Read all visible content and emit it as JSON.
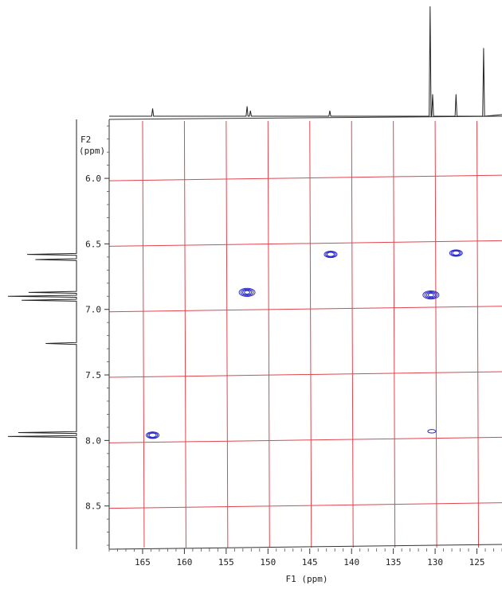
{
  "chart_data": {
    "type": "scatter",
    "title": "",
    "xlabel": "F1 (ppm)",
    "ylabel_line1": "F2",
    "ylabel_line2": "(ppm)",
    "x_range": [
      169.0,
      122.0
    ],
    "y_range": [
      5.55,
      8.83
    ],
    "x_ticks": [
      165,
      160,
      155,
      150,
      145,
      140,
      135,
      130,
      125
    ],
    "x_tick_labels": [
      "165",
      "160",
      "155",
      "150",
      "145",
      "140",
      "135",
      "130",
      "125"
    ],
    "y_ticks": [
      6.0,
      6.5,
      7.0,
      7.5,
      8.0,
      8.5
    ],
    "y_tick_labels": [
      "6.0",
      "6.5",
      "7.0",
      "7.5",
      "8.0",
      "8.5"
    ],
    "grid": true,
    "points": [
      {
        "x": 163.8,
        "y": 7.96,
        "size": "medium"
      },
      {
        "x": 152.5,
        "y": 6.87,
        "size": "large"
      },
      {
        "x": 142.5,
        "y": 6.58,
        "size": "medium"
      },
      {
        "x": 130.5,
        "y": 6.89,
        "size": "large"
      },
      {
        "x": 127.5,
        "y": 6.57,
        "size": "medium"
      },
      {
        "x": 130.4,
        "y": 7.93,
        "size": "small"
      }
    ],
    "f1_projection_peaks": [
      {
        "ppm": 163.8,
        "height": 0.07
      },
      {
        "ppm": 152.5,
        "height": 0.09
      },
      {
        "ppm": 152.1,
        "height": 0.05
      },
      {
        "ppm": 142.6,
        "height": 0.05
      },
      {
        "ppm": 130.6,
        "height": 1.0
      },
      {
        "ppm": 130.3,
        "height": 0.2
      },
      {
        "ppm": 127.5,
        "height": 0.2
      },
      {
        "ppm": 124.2,
        "height": 0.62
      }
    ],
    "f2_projection_peaks": [
      {
        "ppm": 6.58,
        "height": 0.72
      },
      {
        "ppm": 6.62,
        "height": 0.6
      },
      {
        "ppm": 6.87,
        "height": 0.7
      },
      {
        "ppm": 6.9,
        "height": 1.0
      },
      {
        "ppm": 6.93,
        "height": 0.8
      },
      {
        "ppm": 7.26,
        "height": 0.45
      },
      {
        "ppm": 7.94,
        "height": 0.85
      },
      {
        "ppm": 7.97,
        "height": 1.0
      }
    ],
    "colors": {
      "grid": "#e0464f",
      "peaks": "#2b2bc8",
      "axes": "#333333"
    }
  }
}
